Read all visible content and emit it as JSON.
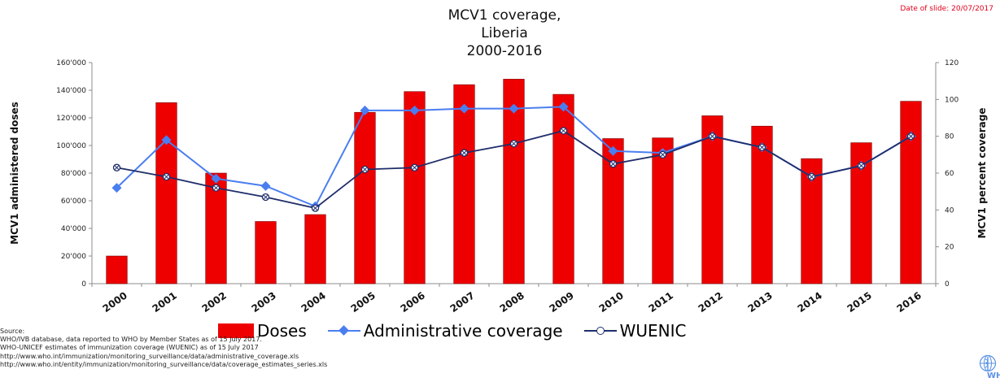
{
  "slide_date": "Date of slide: 20/07/2017",
  "title_lines": [
    "MCV1 coverage,",
    "Liberia",
    "2000-2016"
  ],
  "legend": {
    "doses": "Doses",
    "administrative": "Administrative coverage",
    "wuenic": "WUENIC"
  },
  "source_lines": [
    "Source:",
    "WHO/IVB database, data reported to WHO by Member States as of 15 July 2017.",
    "WHO-UNICEF estimates of immunization coverage (WUENIC) as of 15 July 2017",
    "http://www.who.int/immunization/monitoring_surveillance/data/administrative_coverage.xls",
    "http://www.who.int/entity/immunization/monitoring_surveillance/data/coverage_estimates_series.xls"
  ],
  "logo_text": "WHO",
  "colors": {
    "doses": "#ee0000",
    "administrative": "#4a7ef0",
    "wuenic": "#1f2d6a"
  },
  "chart_data": {
    "type": "bar",
    "categories": [
      "2000",
      "2001",
      "2002",
      "2003",
      "2004",
      "2005",
      "2006",
      "2007",
      "2008",
      "2009",
      "2010",
      "2011",
      "2012",
      "2013",
      "2014",
      "2015",
      "2016"
    ],
    "series": [
      {
        "name": "Doses",
        "type": "bar",
        "axis": "left",
        "values": [
          20000,
          131000,
          80000,
          45000,
          50000,
          124000,
          139000,
          144000,
          148000,
          137000,
          105000,
          105500,
          121500,
          114000,
          90500,
          102000,
          132000
        ]
      },
      {
        "name": "Administrative coverage",
        "type": "line",
        "axis": "right",
        "marker": "diamond",
        "values": [
          52,
          78,
          57,
          53,
          42,
          94,
          94,
          95,
          95,
          96,
          72,
          71,
          80,
          74,
          58,
          64,
          80
        ]
      },
      {
        "name": "WUENIC",
        "type": "line",
        "axis": "right",
        "marker": "circle-x",
        "values": [
          63,
          58,
          52,
          47,
          41,
          62,
          63,
          71,
          76,
          83,
          65,
          70,
          80,
          74,
          58,
          64,
          80
        ]
      }
    ],
    "ylabel": "MCV1 administered doses",
    "y2label": "MCV1 percent coverage",
    "ylim": [
      0,
      160000
    ],
    "y2lim": [
      0,
      120
    ],
    "yticks": [
      "0",
      "20'000",
      "40'000",
      "60'000",
      "80'000",
      "100'000",
      "120'000",
      "140'000",
      "160'000"
    ],
    "y2ticks": [
      "0",
      "20",
      "40",
      "60",
      "80",
      "100",
      "120"
    ],
    "grid": false,
    "legend_position": "bottom"
  }
}
